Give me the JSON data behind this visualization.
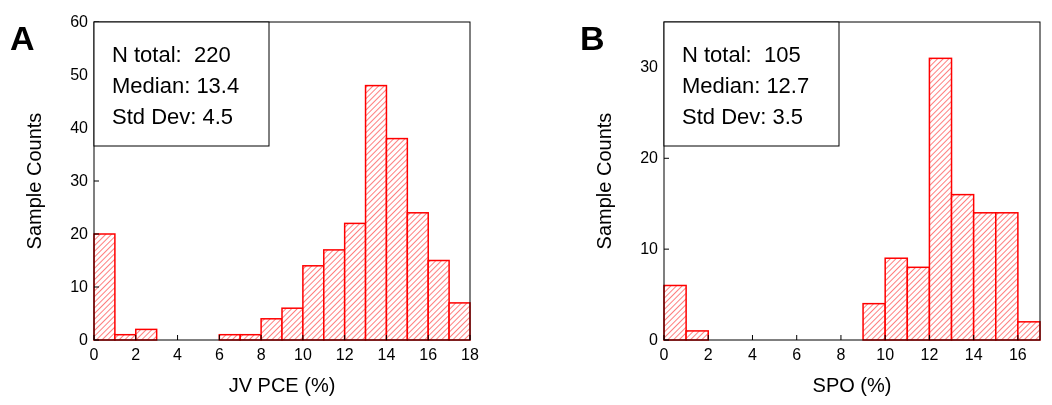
{
  "chart_data": [
    {
      "type": "histogram",
      "title": "A",
      "xlabel": "JV PCE (%)",
      "ylabel": "Sample Counts",
      "bins": [
        0,
        1,
        2,
        3,
        4,
        5,
        6,
        7,
        8,
        9,
        10,
        11,
        12,
        13,
        14,
        15,
        16,
        17,
        18
      ],
      "values": [
        20,
        1,
        2,
        0,
        0,
        0,
        1,
        1,
        4,
        6,
        14,
        17,
        22,
        48,
        38,
        24,
        15,
        7
      ],
      "color": "#ff0000",
      "xlim": [
        0,
        18
      ],
      "xticks": [
        0,
        2,
        4,
        6,
        8,
        10,
        12,
        14,
        16,
        18
      ],
      "ylim": [
        0,
        60
      ],
      "yticks": [
        0,
        10,
        20,
        30,
        40,
        50,
        60
      ],
      "annotations": [
        "N total:  220",
        "Median: 13.4",
        "Std Dev: 4.5"
      ]
    },
    {
      "type": "histogram",
      "title": "B",
      "xlabel": "SPO (%)",
      "ylabel": "Sample Counts",
      "bins": [
        0,
        1,
        2,
        3,
        4,
        5,
        6,
        7,
        8,
        9,
        10,
        11,
        12,
        13,
        14,
        15,
        16,
        17
      ],
      "values": [
        6,
        1,
        0,
        0,
        0,
        0,
        0,
        0,
        0,
        4,
        9,
        8,
        31,
        16,
        14,
        14,
        2
      ],
      "color": "#ff0000",
      "xlim": [
        0,
        17
      ],
      "xticks": [
        0,
        2,
        4,
        6,
        8,
        10,
        12,
        14,
        16
      ],
      "ylim": [
        0,
        35
      ],
      "yticks": [
        0,
        10,
        20,
        30
      ],
      "annotations": [
        "N total:  105",
        "Median: 12.7",
        "Std Dev: 3.5"
      ]
    }
  ]
}
